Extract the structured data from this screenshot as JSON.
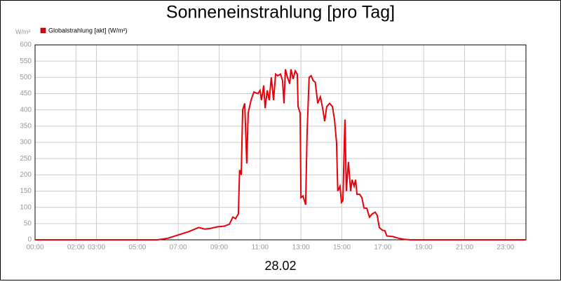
{
  "chart_data": {
    "type": "line",
    "title": "Sonneneinstrahlung [pro Tag]",
    "subtitle": "28.02",
    "y_label": "W/m²",
    "x": [
      0,
      6.0,
      6.5,
      7.0,
      7.5,
      8.0,
      8.3,
      8.57,
      8.9,
      9.25,
      9.5,
      9.67,
      9.8,
      9.94,
      10.0,
      10.08,
      10.15,
      10.25,
      10.35,
      10.42,
      10.56,
      10.7,
      10.9,
      11.0,
      11.07,
      11.18,
      11.25,
      11.35,
      11.45,
      11.55,
      11.66,
      11.76,
      11.86,
      12.0,
      12.1,
      12.17,
      12.24,
      12.34,
      12.45,
      12.51,
      12.62,
      12.72,
      12.82,
      12.86,
      12.96,
      13.0,
      13.1,
      13.23,
      13.3,
      13.4,
      13.5,
      13.6,
      13.7,
      13.82,
      13.95,
      14.06,
      14.16,
      14.26,
      14.4,
      14.54,
      14.64,
      14.74,
      14.8,
      14.91,
      14.98,
      15.05,
      15.15,
      15.22,
      15.32,
      15.43,
      15.5,
      15.6,
      15.67,
      15.74,
      15.87,
      15.98,
      16.08,
      16.22,
      16.35,
      16.49,
      16.63,
      16.73,
      16.83,
      16.97,
      17.1,
      17.2,
      17.5,
      17.76,
      18.0,
      18.35,
      24
    ],
    "series": [
      {
        "name": "Globalstrahlung [akt] (W/m²)",
        "color": "#e8000b",
        "values": [
          0,
          0,
          5,
          15,
          25,
          38,
          33,
          35,
          40,
          42,
          48,
          70,
          65,
          80,
          215,
          200,
          400,
          420,
          235,
          390,
          430,
          455,
          450,
          460,
          430,
          475,
          405,
          460,
          430,
          500,
          430,
          510,
          505,
          510,
          490,
          420,
          525,
          500,
          480,
          525,
          495,
          520,
          510,
          410,
          390,
          130,
          135,
          108,
          330,
          500,
          505,
          490,
          485,
          420,
          440,
          405,
          365,
          410,
          420,
          410,
          370,
          300,
          150,
          165,
          115,
          120,
          370,
          150,
          240,
          150,
          185,
          165,
          185,
          140,
          140,
          130,
          98,
          97,
          70,
          80,
          85,
          75,
          38,
          30,
          28,
          12,
          10,
          5,
          2,
          0,
          0
        ]
      }
    ],
    "xlim": [
      0,
      24
    ],
    "xticks": [
      {
        "value": 0,
        "label": "00:00"
      },
      {
        "value": 2,
        "label": "02:00"
      },
      {
        "value": 3,
        "label": "03:00"
      },
      {
        "value": 5,
        "label": "05:00"
      },
      {
        "value": 7,
        "label": "07:00"
      },
      {
        "value": 9,
        "label": "09:00"
      },
      {
        "value": 11,
        "label": "11:00"
      },
      {
        "value": 13,
        "label": "13:00"
      },
      {
        "value": 15,
        "label": "15:00"
      },
      {
        "value": 17,
        "label": "17:00"
      },
      {
        "value": 19,
        "label": "19:00"
      },
      {
        "value": 21,
        "label": "21:00"
      },
      {
        "value": 23,
        "label": "23:00"
      }
    ],
    "ylim": [
      0,
      600
    ],
    "yticks": [
      0,
      50,
      100,
      150,
      200,
      250,
      300,
      350,
      400,
      450,
      500,
      550,
      600
    ],
    "grid": true
  }
}
